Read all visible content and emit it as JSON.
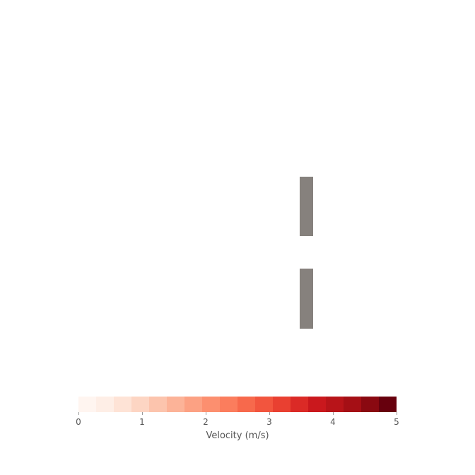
{
  "scene": {
    "background_color": "#ffffff",
    "wall_color": "#86817d"
  },
  "colorbar": {
    "label": "Velocity (m/s)",
    "min": 0,
    "max": 5,
    "tick_values": [
      0,
      1,
      2,
      3,
      4,
      5
    ],
    "tick_labels": [
      "0",
      "1",
      "2",
      "3",
      "4",
      "5"
    ],
    "colors": [
      "#fff5f0",
      "#feeee6",
      "#fee3d6",
      "#fdd5c3",
      "#fcc4ad",
      "#fcb398",
      "#fca183",
      "#fc8f6f",
      "#fb7d5d",
      "#f7694c",
      "#f2553e",
      "#e94031",
      "#db2a26",
      "#ca181d",
      "#b81419",
      "#a50f15",
      "#8a0911",
      "#67000d"
    ]
  }
}
